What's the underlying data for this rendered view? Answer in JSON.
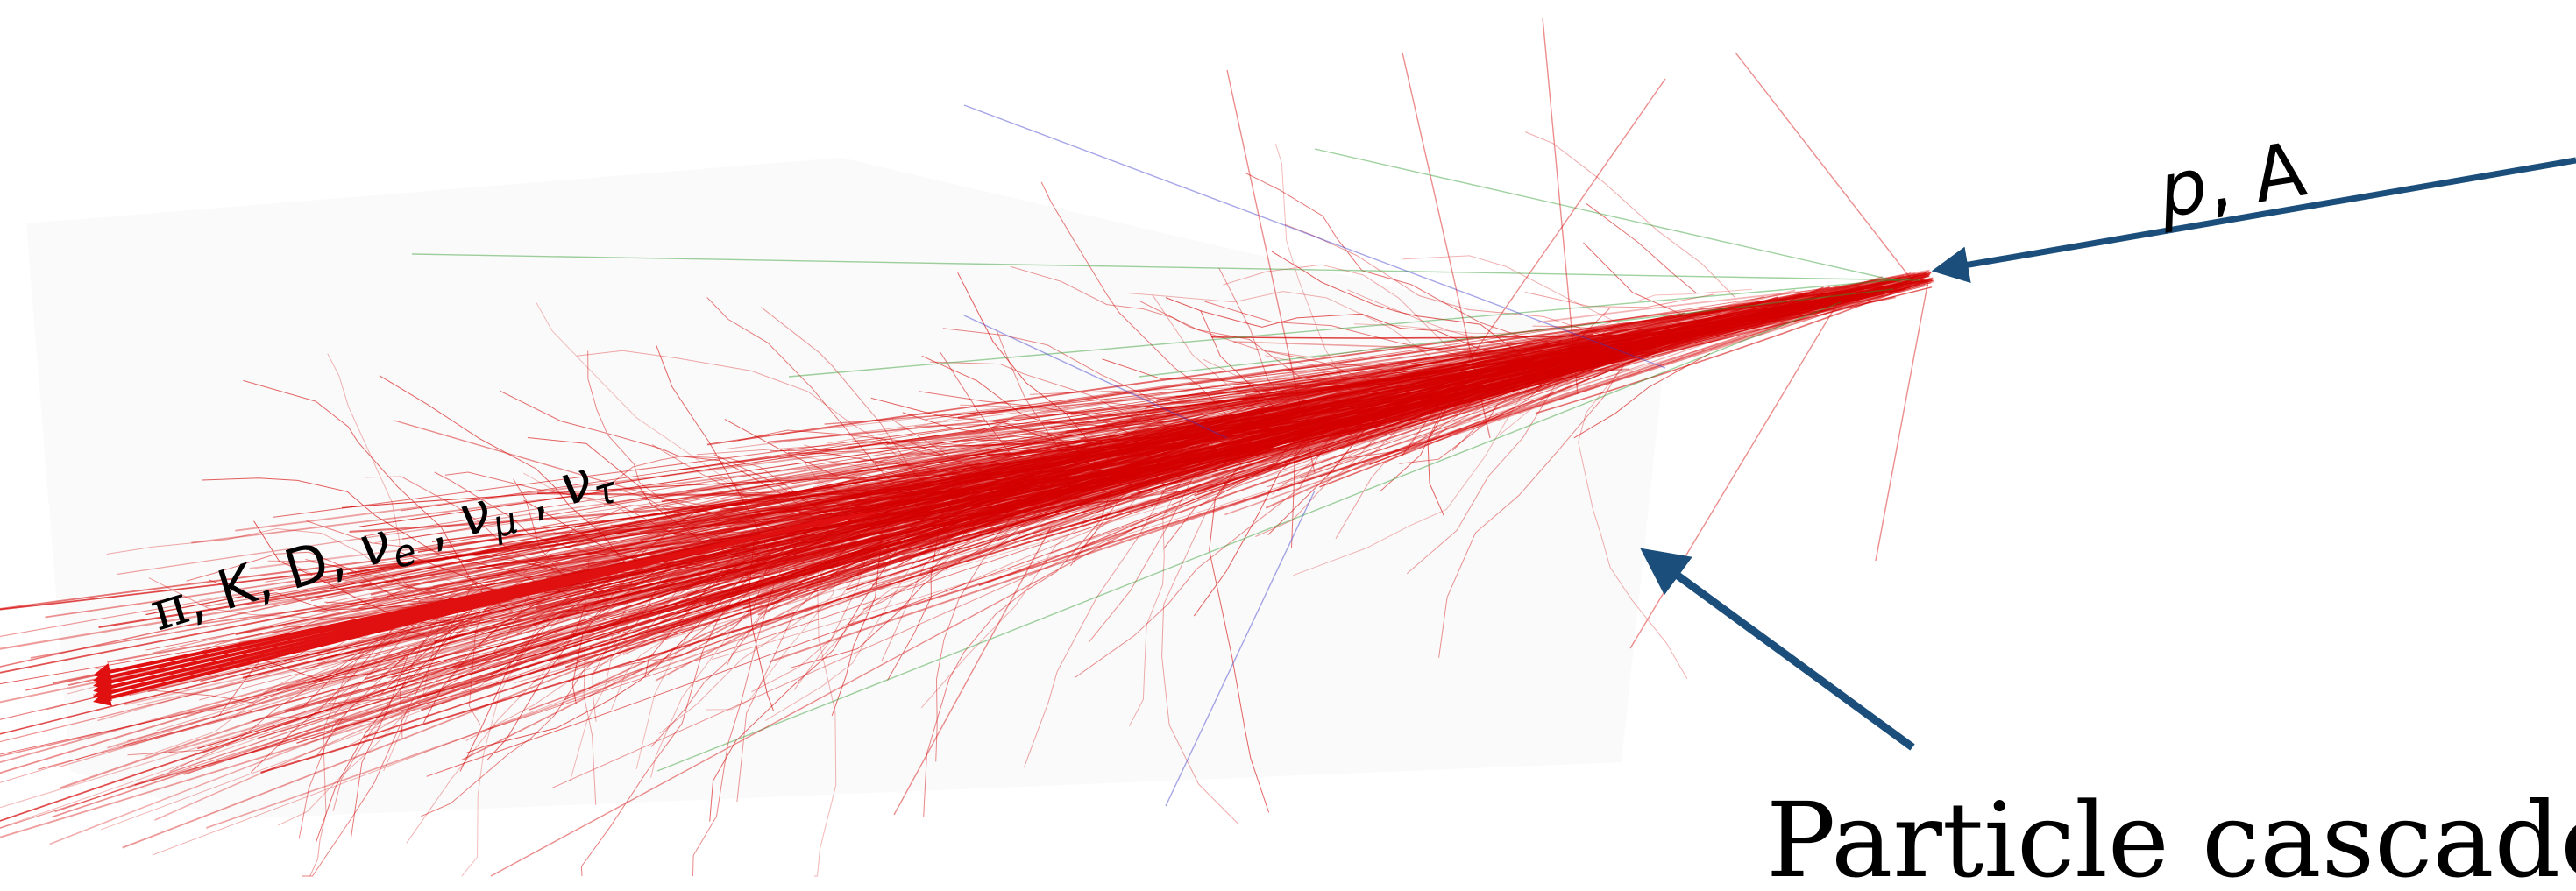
{
  "labels": {
    "primary": "p, A",
    "primary_p": "p",
    "primary_rest": ", A",
    "secondaries": "π, K, D, νe , νμ , ντ",
    "sec_pi": "π",
    "sec_kd": ", K, D, ",
    "sec_nu": "ν",
    "sub_e": "e",
    "sub_mu": "μ",
    "sub_tau": "τ",
    "comma_sep": " , ",
    "caption": "Particle cascades i"
  },
  "colors": {
    "primary_arrow": "#1b4e7a",
    "secondary_arrows": "#e01010",
    "track_red": "#d40000",
    "track_green": "#2a9a2a",
    "track_blue": "#3a3acc",
    "panel": "#fafafa"
  },
  "icons": {
    "primary_arrow": "arrow-icon",
    "pointer_arrow": "arrow-icon"
  }
}
